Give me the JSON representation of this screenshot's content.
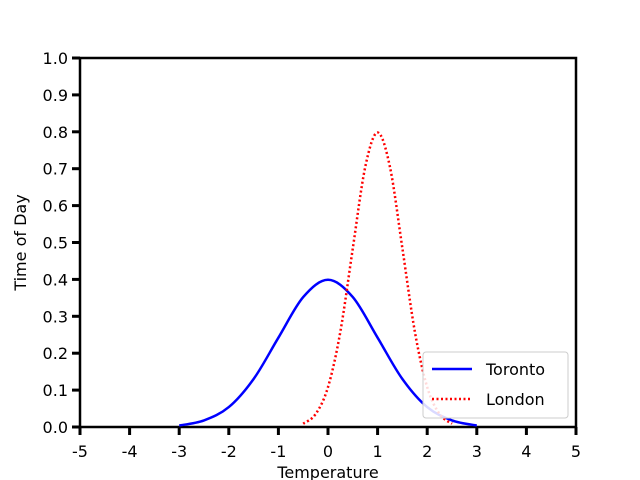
{
  "chart_data": {
    "type": "line",
    "xlabel": "Temperature",
    "ylabel": "Time of Day",
    "xlim": [
      -5,
      5
    ],
    "ylim": [
      0,
      1.0
    ],
    "xticks": [
      "-5",
      "-4",
      "-3",
      "-2",
      "-1",
      "0",
      "1",
      "2",
      "3",
      "4",
      "5"
    ],
    "yticks": [
      "0.0",
      "0.1",
      "0.2",
      "0.3",
      "0.4",
      "0.5",
      "0.6",
      "0.7",
      "0.8",
      "0.9",
      "1.0"
    ],
    "grid": false,
    "legend_position": "bottom-right",
    "series": [
      {
        "name": "Toronto",
        "color": "#0000ff",
        "style": "solid",
        "x": [
          -3.0,
          -2.5,
          -2.0,
          -1.5,
          -1.0,
          -0.5,
          0.0,
          0.5,
          1.0,
          1.5,
          2.0,
          2.5,
          3.0
        ],
        "y": [
          0.004,
          0.018,
          0.054,
          0.13,
          0.242,
          0.352,
          0.399,
          0.352,
          0.242,
          0.13,
          0.054,
          0.018,
          0.004
        ]
      },
      {
        "name": "London",
        "color": "#ff0000",
        "style": "dotted",
        "x": [
          -0.5,
          -0.25,
          0.0,
          0.25,
          0.5,
          0.75,
          1.0,
          1.25,
          1.5,
          1.75,
          2.0,
          2.25,
          2.5
        ],
        "y": [
          0.009,
          0.035,
          0.108,
          0.259,
          0.484,
          0.704,
          0.798,
          0.704,
          0.484,
          0.259,
          0.108,
          0.035,
          0.009
        ]
      }
    ]
  }
}
